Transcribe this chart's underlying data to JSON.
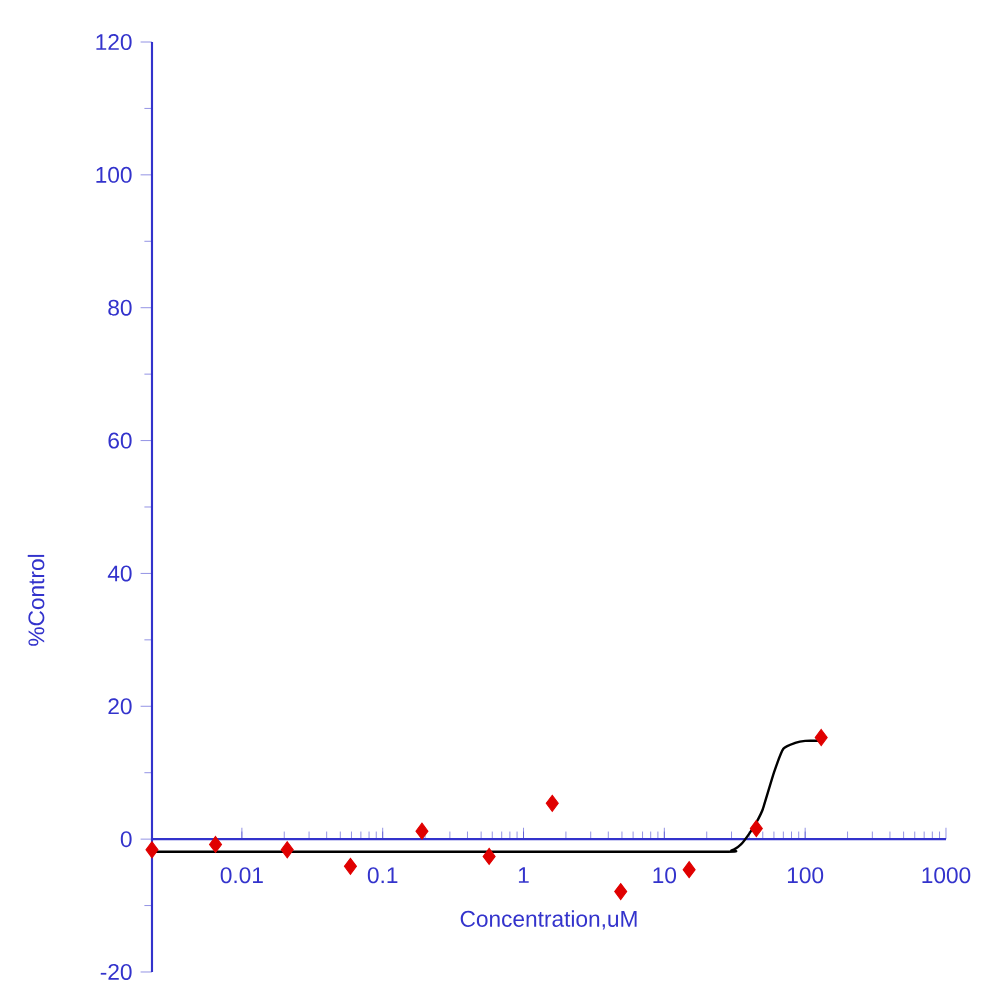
{
  "chart_data": {
    "type": "scatter",
    "xlabel": "Concentration,uM",
    "ylabel": "%Control",
    "log": "x",
    "grid": false,
    "xlim": [
      0.0023,
      1000
    ],
    "ylim": [
      -20,
      120
    ],
    "xticks": [
      0.01,
      0.1,
      1,
      10,
      100,
      1000
    ],
    "yticks": [
      -20,
      0,
      20,
      40,
      60,
      80,
      100,
      120
    ],
    "series": [
      {
        "marker": "diamond",
        "color": "#e00000",
        "x": [
          0.0023,
          0.0065,
          0.021,
          0.059,
          0.19,
          0.57,
          1.6,
          4.9,
          15,
          45,
          130
        ],
        "values": [
          -1.6,
          -0.8,
          -1.6,
          -4.1,
          1.2,
          -2.6,
          5.4,
          -7.9,
          -4.6,
          1.6,
          15.3
        ]
      },
      {
        "type": "line",
        "color": "#000000",
        "x": [
          0.0023,
          20,
          30,
          35,
          40,
          45,
          50,
          60,
          70,
          85,
          100,
          130
        ],
        "values": [
          -1.9,
          -1.9,
          -1.7,
          -0.8,
          0.8,
          2.5,
          4.5,
          10,
          13.6,
          14.5,
          14.8,
          14.8
        ]
      }
    ]
  }
}
